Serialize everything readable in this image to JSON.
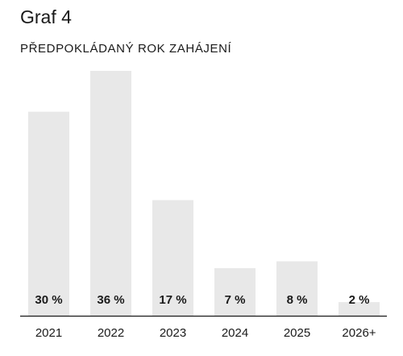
{
  "chart_data": {
    "type": "bar",
    "title": "Graf 4",
    "subtitle": "PŘEDPOKLÁDANÝ ROK ZAHÁJENÍ",
    "categories": [
      "2021",
      "2022",
      "2023",
      "2024",
      "2025",
      "2026+"
    ],
    "values": [
      30,
      36,
      17,
      7,
      8,
      2
    ],
    "value_labels": [
      "30 %",
      "36 %",
      "17 %",
      "7 %",
      "8 %",
      "2 %"
    ],
    "unit": "%",
    "xlabel": "",
    "ylabel": "",
    "ylim": [
      0,
      36
    ],
    "grid": false,
    "legend": "none",
    "bar_color": "#e8e8e8",
    "baseline_color": "#1a1a1a",
    "text_color": "#1a1a1a"
  }
}
